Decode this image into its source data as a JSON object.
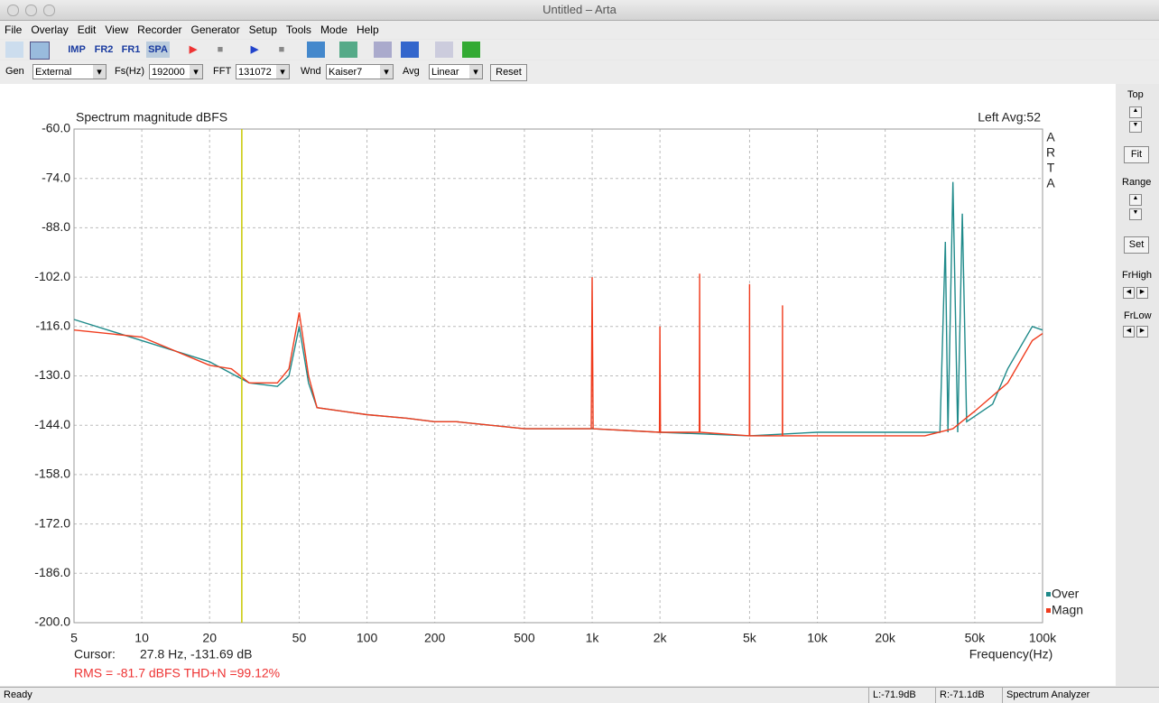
{
  "window": {
    "title": "Untitled – Arta"
  },
  "menu": [
    "File",
    "Overlay",
    "Edit",
    "View",
    "Recorder",
    "Generator",
    "Setup",
    "Tools",
    "Mode",
    "Help"
  ],
  "toolbar": {
    "labels": [
      "IMP",
      "FR2",
      "FR1",
      "SPA"
    ]
  },
  "controls": [
    {
      "label": "Gen",
      "value": "External"
    },
    {
      "label": "Fs(Hz)",
      "value": "192000"
    },
    {
      "label": "FFT",
      "value": "131072"
    },
    {
      "label": "Wnd",
      "value": "Kaiser7"
    },
    {
      "label": "Avg",
      "value": "Linear"
    }
  ],
  "reset_button": "Reset",
  "side_panel": {
    "top": "Top",
    "fit": "Fit",
    "range": "Range",
    "set": "Set",
    "frhigh": "FrHigh",
    "frlow": "FrLow"
  },
  "status": {
    "ready": "Ready",
    "left": "L:-71.9dB",
    "right": "R:-71.1dB",
    "mode": "Spectrum Analyzer"
  },
  "chart_data": {
    "type": "line",
    "title": "Spectrum magnitude dBFS",
    "info": "Left  Avg:52",
    "brand": "A R T A",
    "x_label": "Frequency(Hz)",
    "log_x": true,
    "grid": true,
    "xlim": [
      5,
      100000
    ],
    "ylim": [
      -200,
      -60
    ],
    "xticks": [
      5,
      10,
      20,
      50,
      100,
      200,
      500,
      {
        "value": 1000,
        "label": "1k"
      },
      {
        "value": 2000,
        "label": "2k"
      },
      {
        "value": 5000,
        "label": "5k"
      },
      {
        "value": 10000,
        "label": "10k"
      },
      {
        "value": 20000,
        "label": "20k"
      },
      {
        "value": 50000,
        "label": "50k"
      },
      {
        "value": 100000,
        "label": "100k"
      }
    ],
    "yticks": [
      {
        "value": -60,
        "label": "-60.0"
      },
      {
        "value": -74,
        "label": "-74.0"
      },
      {
        "value": -88,
        "label": "-88.0"
      },
      {
        "value": -102,
        "label": "-102.0"
      },
      {
        "value": -116,
        "label": "-116.0"
      },
      {
        "value": -130,
        "label": "-130.0"
      },
      {
        "value": -144,
        "label": "-144.0"
      },
      {
        "value": -158,
        "label": "-158.0"
      },
      {
        "value": -172,
        "label": "-172.0"
      },
      {
        "value": -186,
        "label": "-186.0"
      },
      {
        "value": -200,
        "label": "-200.0"
      }
    ],
    "cursor": {
      "label": "Cursor:",
      "text": "27.8 Hz, -131.69 dB",
      "x": 27.8,
      "color": "#c8c800"
    },
    "rms_text": "RMS =  -81.7 dBFS   THD+N =99.12%",
    "series": [
      {
        "name": "Over",
        "color": "#1f8a8a",
        "x": [
          5,
          10,
          20,
          30,
          40,
          45,
          50,
          55,
          60,
          100,
          150,
          200,
          250,
          500,
          1000,
          2000,
          5000,
          10000,
          20000,
          30000,
          35000,
          37000,
          38000,
          40000,
          42000,
          44000,
          46000,
          60000,
          70000,
          90000,
          100000
        ],
        "values": [
          -114,
          -120,
          -126,
          -132,
          -133,
          -130,
          -116,
          -132,
          -139,
          -141,
          -142,
          -143,
          -143,
          -145,
          -145,
          -146,
          -147,
          -146,
          -146,
          -146,
          -146,
          -92,
          -146,
          -75,
          -146,
          -84,
          -143,
          -138,
          -128,
          -116,
          -117
        ]
      },
      {
        "name": "Magn",
        "color": "#f03c1e",
        "x": [
          5,
          10,
          20,
          25,
          30,
          40,
          45,
          50,
          55,
          60,
          100,
          150,
          200,
          250,
          500,
          990,
          1000,
          1010,
          1990,
          2000,
          2010,
          2990,
          3000,
          3010,
          4990,
          5000,
          5010,
          6990,
          7000,
          7010,
          10000,
          20000,
          30000,
          40000,
          50000,
          70000,
          90000,
          100000
        ],
        "values": [
          -117,
          -119,
          -127,
          -128,
          -132,
          -132,
          -128,
          -112,
          -130,
          -139,
          -141,
          -142,
          -143,
          -143,
          -145,
          -145,
          -102,
          -145,
          -146,
          -116,
          -146,
          -146,
          -101,
          -146,
          -147,
          -104,
          -147,
          -147,
          -110,
          -147,
          -147,
          -147,
          -147,
          -145,
          -140,
          -132,
          -120,
          -118
        ]
      }
    ]
  }
}
